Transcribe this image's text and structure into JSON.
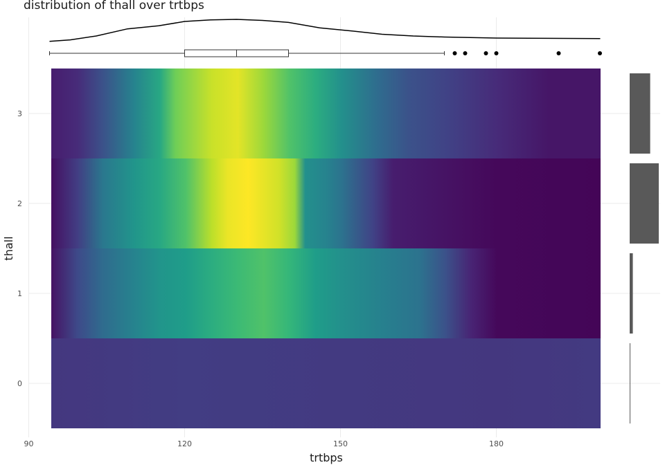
{
  "chart_data": {
    "type": "heatmap",
    "title": "distribution of thall over trtbps",
    "xlabel": "trtbps",
    "ylabel": "thall",
    "xlim": [
      90,
      202
    ],
    "ylim": [
      -0.5,
      3.5
    ],
    "x_ticks": [
      90,
      120,
      150,
      180
    ],
    "y_ticks": [
      0,
      1,
      2,
      3
    ],
    "colormap": "viridis",
    "grid": true,
    "rows": [
      {
        "thall": 3,
        "density_profile": [
          [
            94,
            0.08
          ],
          [
            99,
            0.12
          ],
          [
            104,
            0.25
          ],
          [
            110,
            0.45
          ],
          [
            115,
            0.6
          ],
          [
            118,
            0.78
          ],
          [
            125,
            0.92
          ],
          [
            130,
            0.96
          ],
          [
            135,
            0.85
          ],
          [
            140,
            0.72
          ],
          [
            145,
            0.62
          ],
          [
            150,
            0.5
          ],
          [
            157,
            0.35
          ],
          [
            163,
            0.25
          ],
          [
            170,
            0.2
          ],
          [
            180,
            0.12
          ],
          [
            190,
            0.06
          ],
          [
            200,
            0.06
          ]
        ]
      },
      {
        "thall": 2,
        "density_profile": [
          [
            94,
            0.04
          ],
          [
            99,
            0.18
          ],
          [
            104,
            0.4
          ],
          [
            110,
            0.52
          ],
          [
            115,
            0.6
          ],
          [
            120,
            0.72
          ],
          [
            125,
            0.9
          ],
          [
            128,
            0.97
          ],
          [
            132,
            1.0
          ],
          [
            138,
            0.93
          ],
          [
            141,
            0.85
          ],
          [
            143,
            0.5
          ],
          [
            147,
            0.45
          ],
          [
            150,
            0.38
          ],
          [
            156,
            0.2
          ],
          [
            160,
            0.08
          ],
          [
            170,
            0.05
          ],
          [
            180,
            0.02
          ],
          [
            200,
            0.01
          ]
        ]
      },
      {
        "thall": 1,
        "density_profile": [
          [
            94,
            0.05
          ],
          [
            99,
            0.22
          ],
          [
            104,
            0.35
          ],
          [
            110,
            0.45
          ],
          [
            115,
            0.52
          ],
          [
            120,
            0.55
          ],
          [
            125,
            0.62
          ],
          [
            130,
            0.68
          ],
          [
            135,
            0.72
          ],
          [
            140,
            0.66
          ],
          [
            145,
            0.55
          ],
          [
            150,
            0.5
          ],
          [
            155,
            0.46
          ],
          [
            160,
            0.42
          ],
          [
            165,
            0.38
          ],
          [
            170,
            0.25
          ],
          [
            175,
            0.1
          ],
          [
            180,
            0.02
          ],
          [
            200,
            0.01
          ]
        ]
      },
      {
        "thall": 0,
        "density_profile": [
          [
            94,
            0.16
          ],
          [
            120,
            0.18
          ],
          [
            150,
            0.17
          ],
          [
            180,
            0.16
          ],
          [
            200,
            0.17
          ]
        ]
      }
    ],
    "marginal_density": {
      "axis": "x",
      "points": [
        [
          94,
          0.14
        ],
        [
          98,
          0.2
        ],
        [
          103,
          0.35
        ],
        [
          109,
          0.63
        ],
        [
          115,
          0.75
        ],
        [
          120,
          0.92
        ],
        [
          125,
          0.98
        ],
        [
          130,
          1.0
        ],
        [
          135,
          0.96
        ],
        [
          140,
          0.88
        ],
        [
          146,
          0.67
        ],
        [
          152,
          0.55
        ],
        [
          158,
          0.42
        ],
        [
          164,
          0.35
        ],
        [
          170,
          0.31
        ],
        [
          180,
          0.27
        ],
        [
          190,
          0.26
        ],
        [
          200,
          0.25
        ]
      ]
    },
    "marginal_boxplot": {
      "whisker_low": 94,
      "q1": 120,
      "median": 130,
      "q3": 140,
      "whisker_high": 170,
      "outliers": [
        172,
        174,
        178,
        180,
        192,
        200
      ]
    },
    "marginal_bars": {
      "axis": "y",
      "counts": [
        {
          "thall": 0,
          "count": 2
        },
        {
          "thall": 1,
          "count": 18
        },
        {
          "thall": 2,
          "count": 166
        },
        {
          "thall": 3,
          "count": 117
        }
      ]
    }
  },
  "colors": {
    "heatmap_palette": [
      "#440154",
      "#482878",
      "#3e4a89",
      "#31688e",
      "#26828e",
      "#1f9e89",
      "#35b779",
      "#6ece58",
      "#b5de2b",
      "#fde725"
    ],
    "grid": "#ebebeb",
    "bar_fill": "#595959",
    "line": "#000000"
  }
}
